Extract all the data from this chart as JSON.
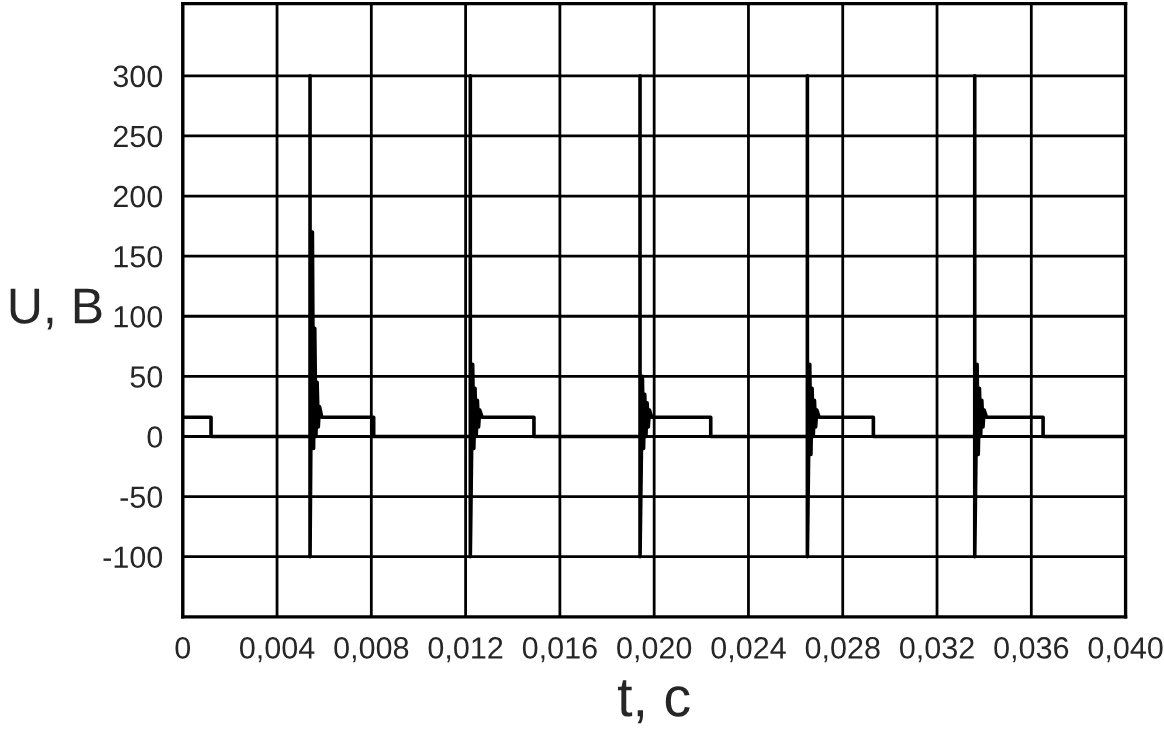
{
  "chart_data": {
    "type": "line",
    "xlabel": "t, c",
    "ylabel": "U, B",
    "series": [
      {
        "color": "#000000",
        "x": [
          0,
          0.0012,
          0.0012,
          0.0054,
          0.0054,
          0.0054,
          0.0055,
          0.00555,
          0.0056,
          0.00565,
          0.0057,
          0.00575,
          0.0058,
          0.0059,
          0.0081,
          0.0081,
          0.0122,
          0.0122,
          0.0122,
          0.0123,
          0.01235,
          0.0124,
          0.01245,
          0.0125,
          0.01255,
          0.0126,
          0.0127,
          0.0149,
          0.0149,
          0.0194,
          0.0194,
          0.0194,
          0.0195,
          0.01955,
          0.0196,
          0.01965,
          0.0197,
          0.01975,
          0.0198,
          0.0199,
          0.0224,
          0.0224,
          0.0265,
          0.0265,
          0.0265,
          0.0266,
          0.02665,
          0.0267,
          0.02675,
          0.0268,
          0.02685,
          0.0269,
          0.027,
          0.0293,
          0.0293,
          0.0336,
          0.0336,
          0.0336,
          0.0337,
          0.03375,
          0.0338,
          0.03385,
          0.0339,
          0.03395,
          0.034,
          0.0341,
          0.0365,
          0.0365,
          0.04
        ],
        "values": [
          16,
          16,
          0,
          0,
          300,
          -100,
          170,
          -10,
          90,
          0,
          45,
          8,
          25,
          16,
          16,
          0,
          0,
          300,
          -100,
          60,
          -10,
          40,
          0,
          30,
          8,
          22,
          16,
          16,
          0,
          0,
          300,
          -100,
          50,
          -10,
          35,
          0,
          28,
          8,
          22,
          16,
          16,
          0,
          0,
          300,
          -100,
          60,
          -15,
          40,
          0,
          30,
          8,
          22,
          16,
          16,
          0,
          0,
          300,
          -100,
          60,
          -15,
          40,
          0,
          30,
          8,
          22,
          16,
          16,
          0,
          0
        ]
      }
    ],
    "xlim": [
      0,
      0.04
    ],
    "xticks": [
      {
        "value": 0,
        "label": "0"
      },
      {
        "value": 0.004,
        "label": "0,004"
      },
      {
        "value": 0.008,
        "label": "0,008"
      },
      {
        "value": 0.012,
        "label": "0,012"
      },
      {
        "value": 0.016,
        "label": "0,016"
      },
      {
        "value": 0.02,
        "label": "0,020"
      },
      {
        "value": 0.024,
        "label": "0,024"
      },
      {
        "value": 0.028,
        "label": "0,028"
      },
      {
        "value": 0.032,
        "label": "0,032"
      },
      {
        "value": 0.036,
        "label": "0,036"
      },
      {
        "value": 0.04,
        "label": "0,040"
      }
    ],
    "ylim": [
      -150,
      360
    ],
    "yticks": [
      -100,
      -50,
      0,
      50,
      100,
      150,
      200,
      250,
      300
    ],
    "grid": true,
    "legend": false,
    "marker": "none",
    "line_style": "solid"
  }
}
